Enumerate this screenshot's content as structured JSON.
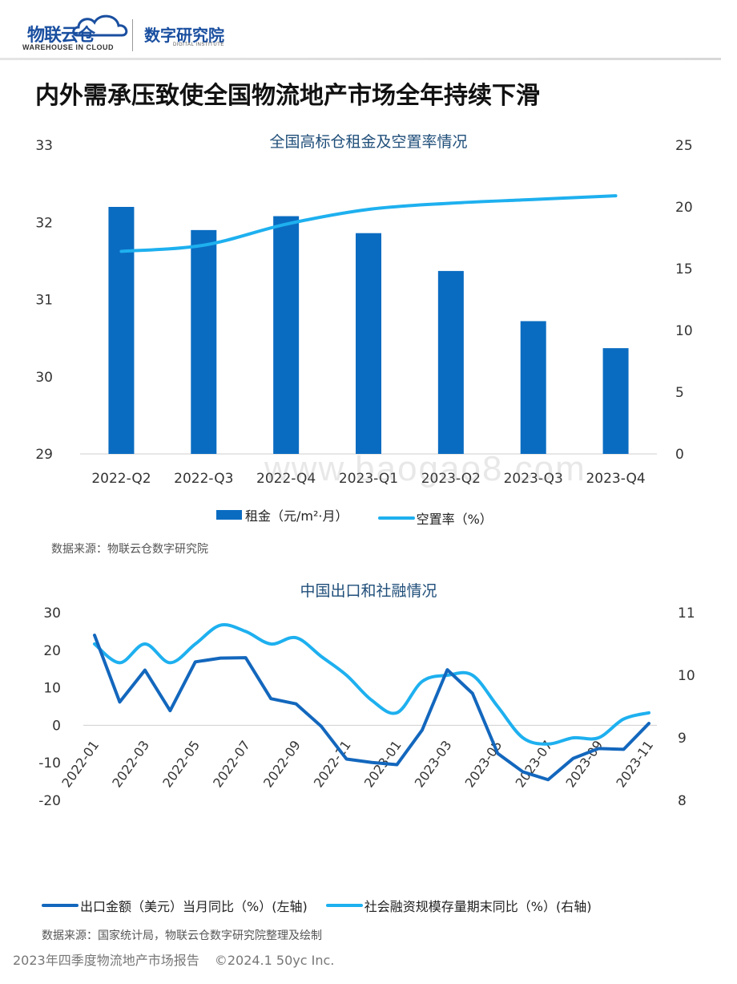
{
  "header": {
    "logo1_text": "物联云仓",
    "logo1_sub": "WAREHOUSE IN CLOUD",
    "logo2_text": "数字研究院",
    "logo2_sub": "DIGITAL INSTITUTE",
    "page_title": "内外需承压致使全国物流地产市场全年持续下滑"
  },
  "watermark": "www.baogao8.com",
  "chart1": {
    "title": "全国高标仓租金及空置率情况",
    "legend_bar": "租金（元/m²·月）",
    "legend_line": "空置率（%）",
    "source": "数据来源：物联云仓数字研究院"
  },
  "chart2": {
    "title": "中国出口和社融情况",
    "legend_dark": "出口金额（美元）当月同比（%）(左轴)",
    "legend_light": "社会融资规模存量期末同比（%）(右轴)",
    "source": "数据来源：国家统计局，物联云仓数字研究院整理及绘制"
  },
  "footer": {
    "report": "2023年四季度物流地产市场报告",
    "copyright": "©2024.1 50yc Inc."
  },
  "chart_data": [
    {
      "type": "bar",
      "title": "全国高标仓租金及空置率情况",
      "categories": [
        "2022-Q2",
        "2022-Q3",
        "2022-Q4",
        "2023-Q1",
        "2023-Q2",
        "2023-Q3",
        "2023-Q4"
      ],
      "y_left": {
        "lim": [
          29,
          33
        ],
        "ticks": [
          29,
          30,
          31,
          32,
          33
        ]
      },
      "y_right": {
        "lim": [
          0,
          25
        ],
        "ticks": [
          0,
          5,
          10,
          15,
          20,
          25
        ]
      },
      "series": [
        {
          "name": "租金（元/m²·月）",
          "type": "bar",
          "axis": "left",
          "color": "#0a6cc1",
          "values": [
            32.2,
            31.9,
            32.08,
            31.86,
            31.37,
            30.72,
            30.37
          ]
        },
        {
          "name": "空置率（%）",
          "type": "line",
          "axis": "right",
          "color": "#1eb0ef",
          "values": [
            16.4,
            16.9,
            18.6,
            19.8,
            20.3,
            20.6,
            20.9
          ]
        }
      ],
      "legend": "bottom"
    },
    {
      "type": "line",
      "title": "中国出口和社融情况",
      "x": [
        "2022-01",
        "2022-02",
        "2022-03",
        "2022-04",
        "2022-05",
        "2022-06",
        "2022-07",
        "2022-08",
        "2022-09",
        "2022-10",
        "2022-11",
        "2022-12",
        "2023-01",
        "2023-02",
        "2023-03",
        "2023-04",
        "2023-05",
        "2023-06",
        "2023-07",
        "2023-08",
        "2023-09",
        "2023-10",
        "2023-11"
      ],
      "x_tick_labels": [
        "2022-01",
        "2022-03",
        "2022-05",
        "2022-07",
        "2022-09",
        "2022-11",
        "2023-01",
        "2023-03",
        "2023-05",
        "2023-07",
        "2023-09",
        "2023-11"
      ],
      "y_left": {
        "lim": [
          -20,
          30
        ],
        "ticks": [
          -20,
          -10,
          0,
          10,
          20,
          30
        ]
      },
      "y_right": {
        "lim": [
          8,
          11
        ],
        "ticks": [
          8,
          9,
          10,
          11
        ]
      },
      "series": [
        {
          "name": "出口金额（美元）当月同比（%）(左轴)",
          "axis": "left",
          "color": "#1367bd",
          "values": [
            24,
            6.2,
            14.7,
            3.9,
            16.9,
            17.9,
            18.0,
            7.1,
            5.7,
            -0.3,
            -9.0,
            -9.9,
            -10.5,
            -1.3,
            14.8,
            8.5,
            -7.5,
            -12.4,
            -14.5,
            -8.8,
            -6.2,
            -6.4,
            0.5
          ]
        },
        {
          "name": "社会融资规模存量期末同比（%）(右轴)",
          "axis": "right",
          "color": "#1eb0ef",
          "values": [
            10.5,
            10.2,
            10.5,
            10.2,
            10.5,
            10.8,
            10.7,
            10.5,
            10.6,
            10.3,
            10.0,
            9.6,
            9.4,
            9.9,
            10.0,
            10.0,
            9.5,
            9.0,
            8.9,
            9.0,
            9.0,
            9.3,
            9.4
          ]
        }
      ],
      "legend": "bottom"
    }
  ]
}
